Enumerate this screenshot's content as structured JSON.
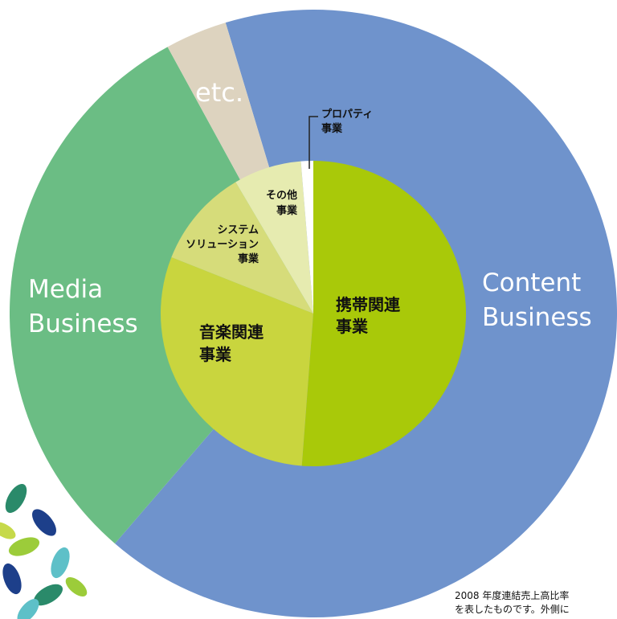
{
  "chart_data": [
    {
      "type": "donut",
      "categories": [
        "Content\nBusiness",
        "Media\nBusiness",
        "etc."
      ],
      "values": [
        66,
        30.7,
        3.3
      ],
      "colors": [
        "#6f93cc",
        "#6bbd84",
        "#ddd3bf"
      ]
    },
    {
      "type": "pie",
      "categories": [
        "携帯関連\n事業",
        "音楽関連\n事業",
        "システム\nソリューション\n事業",
        "その他\n事業",
        "プロパティ\n事業"
      ],
      "values": [
        51.2,
        29.8,
        10.5,
        7.2,
        1.3
      ],
      "colors": [
        "#a9c909",
        "#c9d53e",
        "#d6dc7a",
        "#e6ebb0",
        "#ffffff"
      ]
    }
  ],
  "note": [
    "2008 年度連結売上高比率",
    "を表したものです。外側に"
  ]
}
